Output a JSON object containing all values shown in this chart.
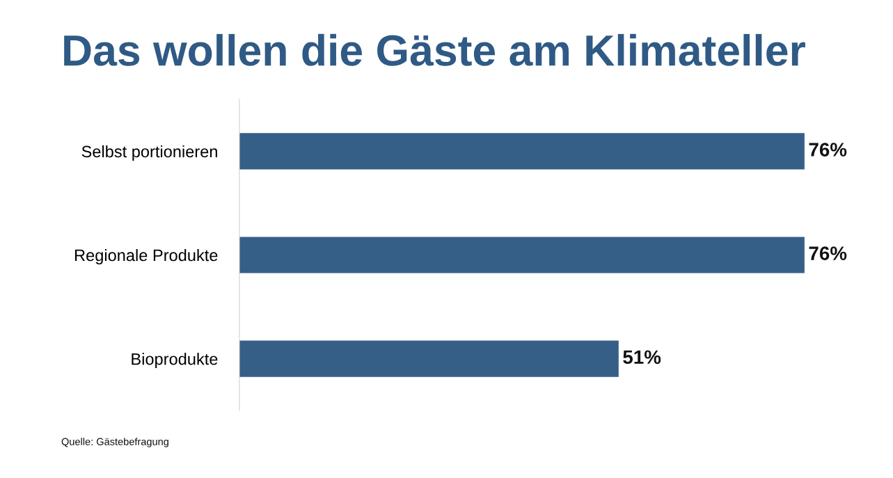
{
  "chart_data": {
    "type": "bar",
    "orientation": "horizontal",
    "title": "Das wollen die Gäste am Klimateller",
    "categories": [
      "Selbst portionieren",
      "Regionale Produkte",
      "Bioprodukte"
    ],
    "values": [
      76,
      76,
      51
    ],
    "color": "#365f88",
    "data_labels": true,
    "value_labels": [
      "76%",
      "76%",
      "51%"
    ],
    "annotations": [
      "Quelle: Gästebefragung"
    ]
  }
}
